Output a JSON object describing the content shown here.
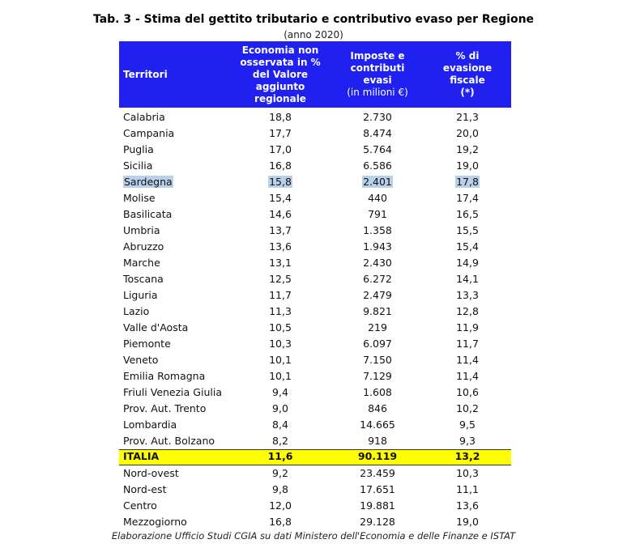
{
  "title": "Tab. 3 - Stima del gettito tributario e contributivo evaso per Regione",
  "subtitle": "(anno 2020)",
  "table": {
    "header": [
      {
        "text": "Territori"
      },
      {
        "text": "Economia non osservata in % del Valore aggiunto regionale"
      },
      {
        "text": "Imposte e contributi evasi",
        "note": "(in milioni €)"
      },
      {
        "text": "% di evasione fiscale",
        "note": "(*)"
      }
    ],
    "rows": [
      [
        "Calabria",
        "18,8",
        "2.730",
        "21,3"
      ],
      [
        "Campania",
        "17,7",
        "8.474",
        "20,0"
      ],
      [
        "Puglia",
        "17,0",
        "5.764",
        "19,2"
      ],
      [
        "Sicilia",
        "16,8",
        "6.586",
        "19,0"
      ],
      [
        "Sardegna",
        "15,8",
        "2.401",
        "17,8"
      ],
      [
        "Molise",
        "15,4",
        "440",
        "17,4"
      ],
      [
        "Basilicata",
        "14,6",
        "791",
        "16,5"
      ],
      [
        "Umbria",
        "13,7",
        "1.358",
        "15,5"
      ],
      [
        "Abruzzo",
        "13,6",
        "1.943",
        "15,4"
      ],
      [
        "Marche",
        "13,1",
        "2.430",
        "14,9"
      ],
      [
        "Toscana",
        "12,5",
        "6.272",
        "14,1"
      ],
      [
        "Liguria",
        "11,7",
        "2.479",
        "13,3"
      ],
      [
        "Lazio",
        "11,3",
        "9.821",
        "12,8"
      ],
      [
        "Valle d'Aosta",
        "10,5",
        "219",
        "11,9"
      ],
      [
        "Piemonte",
        "10,3",
        "6.097",
        "11,7"
      ],
      [
        "Veneto",
        "10,1",
        "7.150",
        "11,4"
      ],
      [
        "Emilia Romagna",
        "10,1",
        "7.129",
        "11,4"
      ],
      [
        "Friuli Venezia Giulia",
        "9,4",
        "1.608",
        "10,6"
      ],
      [
        "Prov. Aut. Trento",
        "9,0",
        "846",
        "10,2"
      ],
      [
        "Lombardia",
        "8,4",
        "14.665",
        "9,5"
      ],
      [
        "Prov. Aut. Bolzano",
        "8,2",
        "918",
        "9,3"
      ]
    ],
    "total": [
      "ITALIA",
      "11,6",
      "90.119",
      "13,2"
    ],
    "areas": [
      [
        "Nord-ovest",
        "9,2",
        "23.459",
        "10,3"
      ],
      [
        "Nord-est",
        "9,8",
        "17.651",
        "11,1"
      ],
      [
        "Centro",
        "12,0",
        "19.881",
        "13,6"
      ],
      [
        "Mezzogiorno",
        "16,8",
        "29.128",
        "19,0"
      ]
    ]
  },
  "footer": "Elaborazione Ufficio Studi CGIA su dati Ministero dell'Economia e delle Finanze e ISTAT"
}
